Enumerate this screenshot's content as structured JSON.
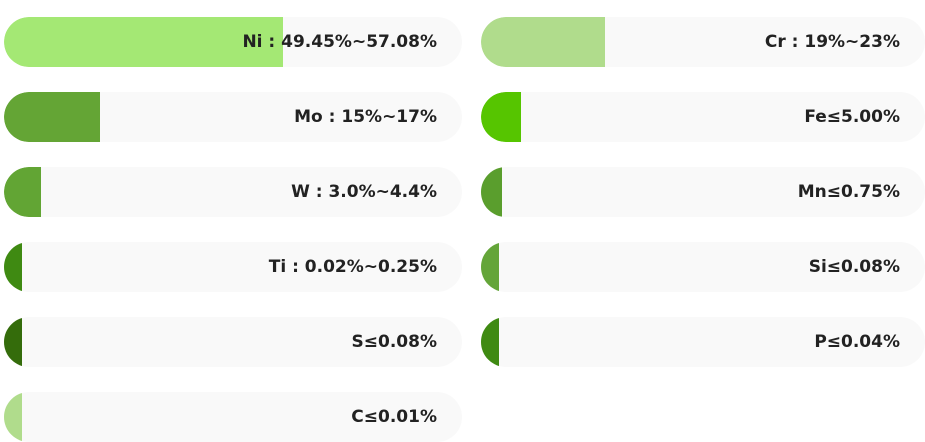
{
  "bars": [
    {
      "label": "Ni : 49.45%~57.08%",
      "fill": 61,
      "color": "#a4e874"
    },
    {
      "label": "Cr : 19%~23%",
      "fill": 28,
      "color": "#b0dc8c"
    },
    {
      "label": "Mo : 15%~17%",
      "fill": 21,
      "color": "#64a535"
    },
    {
      "label": "Fe≤5.00%",
      "fill": 9,
      "color": "#56c500"
    },
    {
      "label": "W : 3.0%~4.4%",
      "fill": 8,
      "color": "#62a534"
    },
    {
      "label": "Mn≤0.75%",
      "fill": 4.7,
      "color": "#5a9e2d"
    },
    {
      "label": "Ti : 0.02%~0.25%",
      "fill": 4,
      "color": "#3f8a12"
    },
    {
      "label": "Si≤0.08%",
      "fill": 4,
      "color": "#64a539"
    },
    {
      "label": "S≤0.08%",
      "fill": 4,
      "color": "#346c0b"
    },
    {
      "label": "P≤0.04%",
      "fill": 4,
      "color": "#3f8a12"
    },
    {
      "label": "C≤0.01%",
      "fill": 4,
      "color": "#b0dc8c"
    }
  ]
}
